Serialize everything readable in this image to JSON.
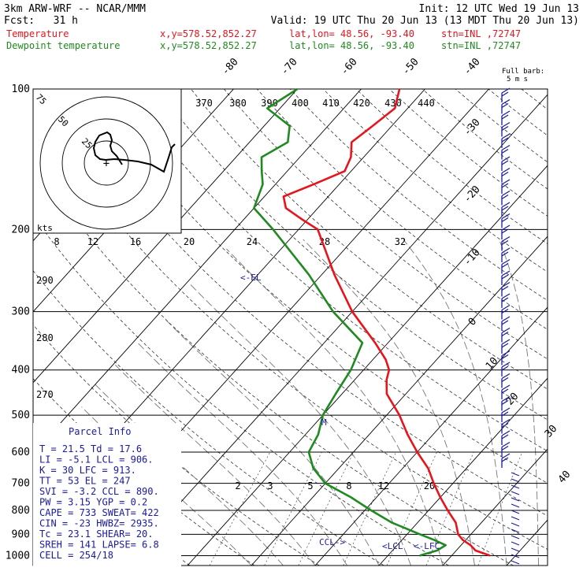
{
  "header": {
    "model": "3km ARW-WRF -- NCAR/MMM",
    "init": "Init: 12 UTC Wed 19 Jun 13",
    "fcst": "Fcst:   31 h",
    "valid": "Valid: 19 UTC Thu 20 Jun 13 (13 MDT Thu 20 Jun 13)",
    "temp_line": {
      "label": "Temperature",
      "xy": "x,y=578.52,852.27",
      "latlon": "lat,lon= 48.56, -93.40",
      "stn": "stn=INL ,72747"
    },
    "dewp_line": {
      "label": "Dewpoint temperature",
      "xy": "x,y=578.52,852.27",
      "latlon": "lat,lon= 48.56, -93.40",
      "stn": "stn=INL ,72747"
    }
  },
  "colors": {
    "temperature": "#e8141b",
    "dewpoint": "#1f8a1f",
    "annotation": "#1a1aa0",
    "text": "#000000"
  },
  "barb_legend": {
    "line1": "Full barb:",
    "line2": "5 m s"
  },
  "hodograph": {
    "rings": [
      "25",
      "50",
      "75"
    ],
    "units": "kts",
    "center_marker": "+"
  },
  "parcel_info": {
    "title": "Parcel Info",
    "rows": [
      "T   =   21.5  Td =  17.6",
      "LI  =   -5.1  LCL =  906.",
      "K   =     30  LFC =  913.",
      "TT  =     53  EL  =   247",
      "SVI =   -3.2  CCL =  890.",
      "PW  =   3.15  YGP =   0.2",
      "CAPE =   733  SWEAT=  422",
      "CIN  =   -23  HWBZ= 2935.",
      "Tc  =   23.1  SHEAR=  20.",
      "SREH =   141  LAPSE=  6.8",
      "CELL = 254/18"
    ]
  },
  "annotations": {
    "el": "<-EL",
    "ccl": "CCL->",
    "lcl": "<LCL",
    "lfc": "<-LFC",
    "m": "M"
  },
  "chart_data": {
    "type": "line",
    "chart_kind": "Skew-T log-P sounding",
    "y_axis": {
      "pressure_hPa": [
        100,
        200,
        300,
        400,
        500,
        600,
        700,
        800,
        900,
        1000
      ],
      "scale": "log"
    },
    "isotherm_labels_C": [
      -80,
      -70,
      -60,
      -50,
      -40,
      -30,
      -20,
      -10,
      0,
      10,
      20,
      30,
      40
    ],
    "theta_labels_upper": [
      370,
      380,
      390,
      400,
      410,
      420,
      430,
      440
    ],
    "theta_labels_left": [
      290,
      280,
      270
    ],
    "mixing_ratio_labels": [
      2,
      3,
      5,
      8,
      12,
      20
    ],
    "hodograph_speed_labels": [
      8,
      12,
      16,
      20,
      24,
      28,
      32
    ],
    "series": [
      {
        "name": "Temperature",
        "points": [
          [
            1000,
            26
          ],
          [
            975,
            23
          ],
          [
            950,
            21.5
          ],
          [
            925,
            19.5
          ],
          [
            900,
            18
          ],
          [
            850,
            16
          ],
          [
            800,
            13
          ],
          [
            750,
            10
          ],
          [
            700,
            7
          ],
          [
            650,
            4
          ],
          [
            600,
            0
          ],
          [
            550,
            -4
          ],
          [
            500,
            -8
          ],
          [
            450,
            -13
          ],
          [
            420,
            -15
          ],
          [
            400,
            -16
          ],
          [
            380,
            -18
          ],
          [
            350,
            -22
          ],
          [
            300,
            -30
          ],
          [
            250,
            -38
          ],
          [
            200,
            -47
          ],
          [
            190,
            -51
          ],
          [
            180,
            -55
          ],
          [
            170,
            -57
          ],
          [
            160,
            -54
          ],
          [
            150,
            -51
          ],
          [
            140,
            -52
          ],
          [
            130,
            -54
          ],
          [
            120,
            -53
          ],
          [
            110,
            -52
          ],
          [
            100,
            -54
          ]
        ]
      },
      {
        "name": "Dewpoint temperature",
        "points": [
          [
            1000,
            15
          ],
          [
            975,
            17
          ],
          [
            950,
            17.6
          ],
          [
            925,
            15
          ],
          [
            900,
            12
          ],
          [
            850,
            6
          ],
          [
            800,
            1
          ],
          [
            750,
            -4
          ],
          [
            700,
            -10
          ],
          [
            650,
            -14
          ],
          [
            600,
            -17
          ],
          [
            550,
            -18
          ],
          [
            500,
            -20
          ],
          [
            450,
            -21
          ],
          [
            400,
            -22
          ],
          [
            350,
            -24
          ],
          [
            300,
            -33
          ],
          [
            250,
            -42
          ],
          [
            200,
            -54
          ],
          [
            180,
            -60
          ],
          [
            160,
            -62
          ],
          [
            150,
            -64
          ],
          [
            140,
            -66
          ],
          [
            130,
            -64
          ],
          [
            120,
            -66
          ],
          [
            110,
            -72
          ],
          [
            100,
            -70
          ]
        ]
      }
    ]
  }
}
